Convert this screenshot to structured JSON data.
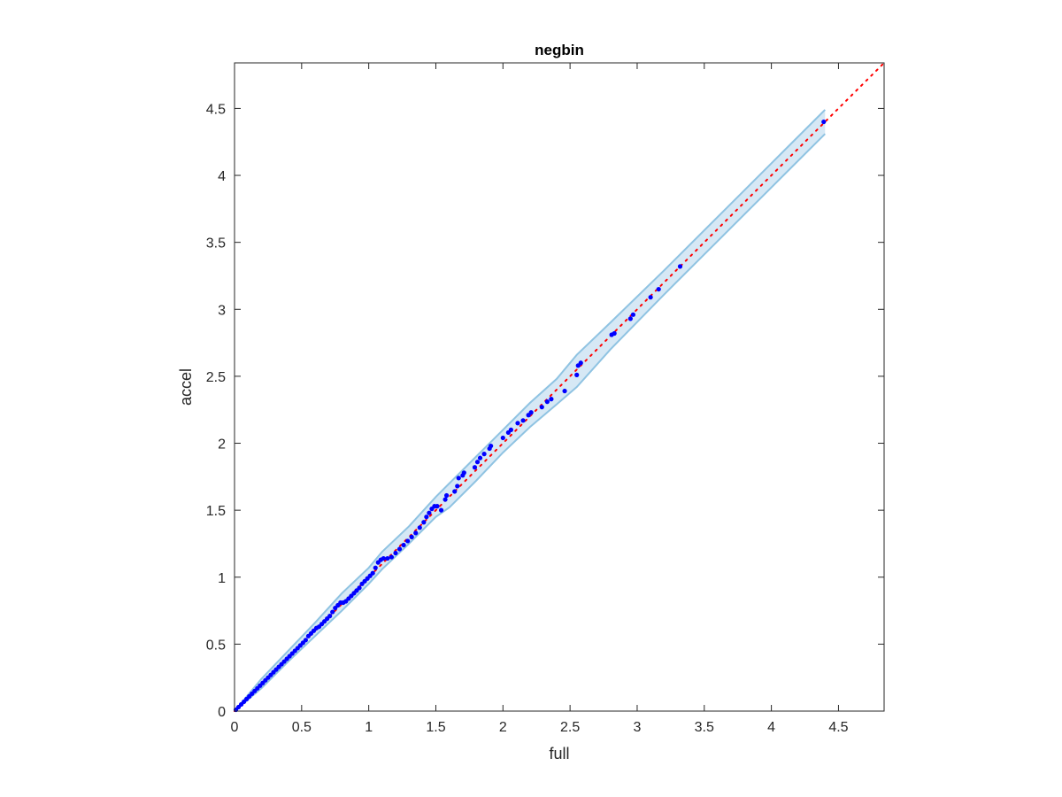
{
  "chart_data": {
    "type": "scatter",
    "title": "negbin",
    "xlabel": "full",
    "ylabel": "accel",
    "xlim": [
      0,
      4.84
    ],
    "ylim": [
      0,
      4.84
    ],
    "xticks": [
      "0",
      "0.5",
      "1",
      "1.5",
      "2",
      "2.5",
      "3",
      "3.5",
      "4",
      "4.5"
    ],
    "yticks": [
      "0",
      "0.5",
      "1",
      "1.5",
      "2",
      "2.5",
      "3",
      "3.5",
      "4",
      "4.5"
    ],
    "tick_values": [
      0,
      0.5,
      1,
      1.5,
      2,
      2.5,
      3,
      3.5,
      4,
      4.5
    ],
    "grid": false,
    "colors": {
      "points": "#0000ff",
      "reference_line": "#ff0000",
      "band_fill": "#d6e8f5",
      "band_edge": "#8fc3e2",
      "axes": "#262626"
    },
    "reference_line": {
      "from": [
        0,
        0
      ],
      "to": [
        4.84,
        4.84
      ],
      "style": "dotted"
    },
    "band": {
      "x": [
        0,
        0.2,
        0.4,
        0.6,
        0.8,
        1.0,
        1.1,
        1.3,
        1.5,
        1.6,
        1.8,
        2.0,
        2.2,
        2.4,
        2.55,
        2.8,
        3.2,
        3.6,
        4.0,
        4.4
      ],
      "lower": [
        0,
        0.17,
        0.37,
        0.56,
        0.75,
        0.95,
        1.06,
        1.25,
        1.45,
        1.52,
        1.72,
        1.93,
        2.12,
        2.29,
        2.42,
        2.7,
        3.11,
        3.51,
        3.91,
        4.31
      ],
      "upper": [
        0,
        0.24,
        0.45,
        0.66,
        0.88,
        1.07,
        1.19,
        1.38,
        1.6,
        1.7,
        1.9,
        2.1,
        2.3,
        2.48,
        2.66,
        2.9,
        3.29,
        3.69,
        4.09,
        4.49
      ]
    },
    "points": [
      [
        0.01,
        0.01
      ],
      [
        0.03,
        0.03
      ],
      [
        0.05,
        0.05
      ],
      [
        0.07,
        0.07
      ],
      [
        0.09,
        0.09
      ],
      [
        0.11,
        0.11
      ],
      [
        0.13,
        0.13
      ],
      [
        0.15,
        0.15
      ],
      [
        0.17,
        0.17
      ],
      [
        0.19,
        0.19
      ],
      [
        0.21,
        0.21
      ],
      [
        0.23,
        0.23
      ],
      [
        0.25,
        0.25
      ],
      [
        0.27,
        0.27
      ],
      [
        0.29,
        0.29
      ],
      [
        0.31,
        0.31
      ],
      [
        0.33,
        0.33
      ],
      [
        0.35,
        0.35
      ],
      [
        0.37,
        0.37
      ],
      [
        0.39,
        0.39
      ],
      [
        0.41,
        0.41
      ],
      [
        0.43,
        0.43
      ],
      [
        0.45,
        0.45
      ],
      [
        0.47,
        0.47
      ],
      [
        0.49,
        0.49
      ],
      [
        0.51,
        0.51
      ],
      [
        0.53,
        0.53
      ],
      [
        0.55,
        0.56
      ],
      [
        0.57,
        0.58
      ],
      [
        0.59,
        0.6
      ],
      [
        0.61,
        0.62
      ],
      [
        0.63,
        0.63
      ],
      [
        0.65,
        0.65
      ],
      [
        0.67,
        0.67
      ],
      [
        0.69,
        0.69
      ],
      [
        0.71,
        0.71
      ],
      [
        0.73,
        0.74
      ],
      [
        0.75,
        0.77
      ],
      [
        0.77,
        0.79
      ],
      [
        0.79,
        0.81
      ],
      [
        0.81,
        0.81
      ],
      [
        0.83,
        0.82
      ],
      [
        0.85,
        0.84
      ],
      [
        0.87,
        0.86
      ],
      [
        0.89,
        0.88
      ],
      [
        0.91,
        0.9
      ],
      [
        0.93,
        0.92
      ],
      [
        0.95,
        0.95
      ],
      [
        0.97,
        0.97
      ],
      [
        0.99,
        0.99
      ],
      [
        1.01,
        1.01
      ],
      [
        1.03,
        1.03
      ],
      [
        1.05,
        1.07
      ],
      [
        1.07,
        1.11
      ],
      [
        1.09,
        1.13
      ],
      [
        1.11,
        1.14
      ],
      [
        1.14,
        1.14
      ],
      [
        1.17,
        1.15
      ],
      [
        1.2,
        1.18
      ],
      [
        1.23,
        1.21
      ],
      [
        1.26,
        1.24
      ],
      [
        1.29,
        1.27
      ],
      [
        1.32,
        1.3
      ],
      [
        1.35,
        1.33
      ],
      [
        1.38,
        1.37
      ],
      [
        1.41,
        1.41
      ],
      [
        1.43,
        1.45
      ],
      [
        1.45,
        1.48
      ],
      [
        1.47,
        1.51
      ],
      [
        1.49,
        1.53
      ],
      [
        1.51,
        1.53
      ],
      [
        1.54,
        1.5
      ],
      [
        1.57,
        1.58
      ],
      [
        1.58,
        1.61
      ],
      [
        1.64,
        1.64
      ],
      [
        1.66,
        1.68
      ],
      [
        1.67,
        1.74
      ],
      [
        1.7,
        1.76
      ],
      [
        1.71,
        1.78
      ],
      [
        1.79,
        1.82
      ],
      [
        1.81,
        1.86
      ],
      [
        1.83,
        1.89
      ],
      [
        1.86,
        1.92
      ],
      [
        1.9,
        1.96
      ],
      [
        1.91,
        1.98
      ],
      [
        2.0,
        2.04
      ],
      [
        2.04,
        2.08
      ],
      [
        2.06,
        2.1
      ],
      [
        2.11,
        2.15
      ],
      [
        2.15,
        2.17
      ],
      [
        2.19,
        2.21
      ],
      [
        2.21,
        2.23
      ],
      [
        2.29,
        2.27
      ],
      [
        2.33,
        2.31
      ],
      [
        2.36,
        2.33
      ],
      [
        2.46,
        2.39
      ],
      [
        2.55,
        2.51
      ],
      [
        2.56,
        2.58
      ],
      [
        2.58,
        2.6
      ],
      [
        2.81,
        2.81
      ],
      [
        2.83,
        2.82
      ],
      [
        2.95,
        2.93
      ],
      [
        2.97,
        2.96
      ],
      [
        3.1,
        3.09
      ],
      [
        3.16,
        3.15
      ],
      [
        3.32,
        3.32
      ],
      [
        4.39,
        4.4
      ]
    ]
  }
}
